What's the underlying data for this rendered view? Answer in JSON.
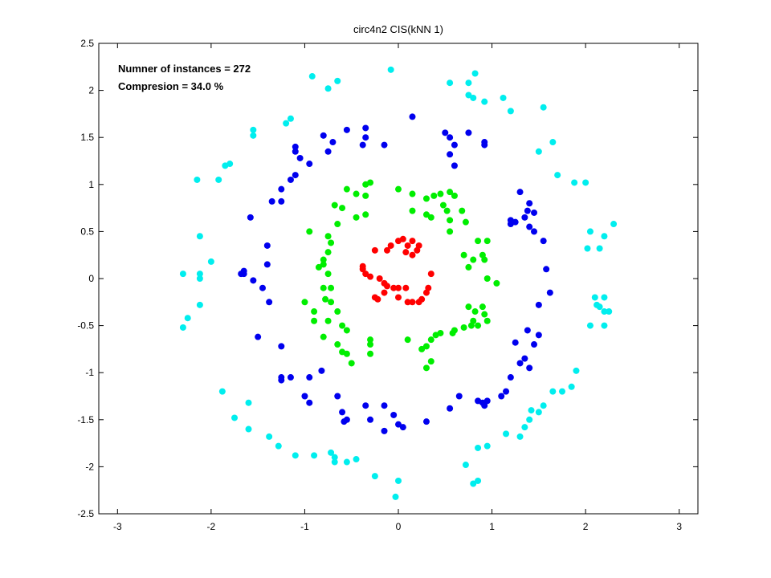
{
  "chart_data": {
    "type": "scatter",
    "title": "circ4n2 CIS(kNN 1)",
    "xlabel": "",
    "ylabel": "",
    "xlim": [
      -3.2,
      3.2
    ],
    "ylim": [
      -2.5,
      2.5
    ],
    "xticks": [
      -3,
      -2,
      -1,
      0,
      1,
      2,
      3
    ],
    "yticks": [
      -2.5,
      -2,
      -1.5,
      -1,
      -0.5,
      0,
      0.5,
      1,
      1.5,
      2,
      2.5
    ],
    "xtick_labels": [
      "-3",
      "-2",
      "-1",
      "0",
      "1",
      "2",
      "3"
    ],
    "ytick_labels": [
      "-2.5",
      "-2",
      "-1.5",
      "-1",
      "-0.5",
      "0",
      "0.5",
      "1",
      "1.5",
      "2",
      "2.5"
    ],
    "grid": false,
    "annotations": [
      "Numner of instances = 272",
      "Compresion = 34.0 %"
    ],
    "series": [
      {
        "color": "#ff0000",
        "points": [
          [
            -0.25,
            0.3
          ],
          [
            -0.12,
            0.3
          ],
          [
            -0.08,
            0.35
          ],
          [
            0.0,
            0.4
          ],
          [
            0.05,
            0.42
          ],
          [
            0.1,
            0.35
          ],
          [
            0.08,
            0.28
          ],
          [
            0.15,
            0.25
          ],
          [
            0.2,
            0.3
          ],
          [
            0.15,
            0.4
          ],
          [
            0.22,
            0.35
          ],
          [
            -0.38,
            0.1
          ],
          [
            -0.35,
            0.05
          ],
          [
            -0.3,
            0.02
          ],
          [
            -0.38,
            0.13
          ],
          [
            -0.2,
            0.0
          ],
          [
            -0.15,
            -0.05
          ],
          [
            -0.12,
            -0.08
          ],
          [
            -0.05,
            -0.1
          ],
          [
            0.0,
            -0.1
          ],
          [
            0.08,
            -0.1
          ],
          [
            -0.25,
            -0.2
          ],
          [
            -0.22,
            -0.22
          ],
          [
            -0.15,
            -0.15
          ],
          [
            0.0,
            -0.2
          ],
          [
            0.1,
            -0.25
          ],
          [
            0.15,
            -0.25
          ],
          [
            0.22,
            -0.25
          ],
          [
            0.25,
            -0.22
          ],
          [
            0.3,
            -0.15
          ],
          [
            0.32,
            -0.1
          ],
          [
            0.35,
            0.05
          ]
        ]
      },
      {
        "color": "#00ee00",
        "points": [
          [
            0.0,
            0.95
          ],
          [
            0.15,
            0.9
          ],
          [
            0.3,
            0.85
          ],
          [
            0.38,
            0.88
          ],
          [
            0.45,
            0.9
          ],
          [
            0.55,
            0.92
          ],
          [
            0.6,
            0.88
          ],
          [
            0.15,
            0.72
          ],
          [
            0.3,
            0.68
          ],
          [
            0.35,
            0.65
          ],
          [
            0.48,
            0.78
          ],
          [
            0.52,
            0.72
          ],
          [
            0.55,
            0.62
          ],
          [
            0.68,
            0.72
          ],
          [
            0.72,
            0.6
          ],
          [
            0.55,
            0.5
          ],
          [
            -0.55,
            0.95
          ],
          [
            -0.45,
            0.9
          ],
          [
            -0.35,
            1.0
          ],
          [
            -0.3,
            1.02
          ],
          [
            -0.35,
            0.88
          ],
          [
            -0.68,
            0.78
          ],
          [
            -0.6,
            0.75
          ],
          [
            -0.45,
            0.65
          ],
          [
            -0.35,
            0.68
          ],
          [
            -0.65,
            0.58
          ],
          [
            -0.95,
            0.5
          ],
          [
            -0.75,
            0.45
          ],
          [
            -0.72,
            0.38
          ],
          [
            -0.75,
            0.28
          ],
          [
            -0.8,
            0.2
          ],
          [
            -0.8,
            0.15
          ],
          [
            -0.85,
            0.12
          ],
          [
            -0.75,
            0.05
          ],
          [
            -0.72,
            -0.1
          ],
          [
            -0.8,
            -0.1
          ],
          [
            -1.0,
            -0.25
          ],
          [
            -0.9,
            -0.35
          ],
          [
            -0.78,
            -0.22
          ],
          [
            -0.72,
            -0.25
          ],
          [
            -0.65,
            -0.35
          ],
          [
            -0.9,
            -0.45
          ],
          [
            -0.75,
            -0.45
          ],
          [
            -0.6,
            -0.5
          ],
          [
            -0.55,
            -0.55
          ],
          [
            -0.8,
            -0.62
          ],
          [
            -0.65,
            -0.7
          ],
          [
            -0.6,
            -0.78
          ],
          [
            -0.55,
            -0.8
          ],
          [
            -0.5,
            -0.9
          ],
          [
            -0.3,
            -0.7
          ],
          [
            -0.3,
            -0.65
          ],
          [
            -0.3,
            -0.8
          ],
          [
            0.85,
            0.4
          ],
          [
            0.95,
            0.4
          ],
          [
            0.7,
            0.25
          ],
          [
            0.9,
            0.25
          ],
          [
            0.92,
            0.2
          ],
          [
            0.8,
            0.2
          ],
          [
            0.75,
            0.12
          ],
          [
            0.95,
            0.0
          ],
          [
            1.05,
            -0.05
          ],
          [
            0.9,
            -0.3
          ],
          [
            0.75,
            -0.3
          ],
          [
            0.82,
            -0.35
          ],
          [
            0.8,
            -0.45
          ],
          [
            0.92,
            -0.38
          ],
          [
            0.95,
            -0.45
          ],
          [
            0.85,
            -0.5
          ],
          [
            0.78,
            -0.5
          ],
          [
            0.7,
            -0.52
          ],
          [
            0.6,
            -0.55
          ],
          [
            0.58,
            -0.58
          ],
          [
            0.45,
            -0.58
          ],
          [
            0.35,
            -0.65
          ],
          [
            0.3,
            -0.72
          ],
          [
            0.25,
            -0.75
          ],
          [
            0.1,
            -0.65
          ],
          [
            0.4,
            -0.6
          ],
          [
            0.3,
            -0.95
          ],
          [
            0.35,
            -0.88
          ]
        ]
      },
      {
        "color": "#0000ee",
        "points": [
          [
            0.15,
            1.72
          ],
          [
            -0.15,
            1.42
          ],
          [
            -0.35,
            1.6
          ],
          [
            -0.35,
            1.5
          ],
          [
            -0.38,
            1.42
          ],
          [
            -0.55,
            1.58
          ],
          [
            -0.7,
            1.45
          ],
          [
            -0.75,
            1.35
          ],
          [
            -0.8,
            1.52
          ],
          [
            -0.95,
            1.22
          ],
          [
            -1.05,
            1.28
          ],
          [
            -1.1,
            1.35
          ],
          [
            -1.1,
            1.4
          ],
          [
            -1.15,
            1.05
          ],
          [
            -1.1,
            1.1
          ],
          [
            -1.25,
            0.82
          ],
          [
            -1.25,
            0.95
          ],
          [
            -1.35,
            0.82
          ],
          [
            -1.58,
            0.65
          ],
          [
            -1.4,
            0.35
          ],
          [
            -1.4,
            0.15
          ],
          [
            -1.65,
            0.05
          ],
          [
            -1.65,
            0.08
          ],
          [
            -1.68,
            0.05
          ],
          [
            -1.55,
            -0.02
          ],
          [
            -1.45,
            -0.1
          ],
          [
            -1.38,
            -0.25
          ],
          [
            -1.5,
            -0.62
          ],
          [
            -1.25,
            -0.72
          ],
          [
            -1.25,
            -1.05
          ],
          [
            -1.25,
            -1.08
          ],
          [
            -1.15,
            -1.05
          ],
          [
            -0.95,
            -1.05
          ],
          [
            -0.82,
            -0.98
          ],
          [
            -1.0,
            -1.25
          ],
          [
            -0.95,
            -1.32
          ],
          [
            -0.65,
            -1.25
          ],
          [
            -0.55,
            -1.5
          ],
          [
            -0.58,
            -1.52
          ],
          [
            -0.6,
            -1.42
          ],
          [
            -0.35,
            -1.35
          ],
          [
            -0.3,
            -1.5
          ],
          [
            -0.15,
            -1.35
          ],
          [
            -0.15,
            -1.62
          ],
          [
            -0.05,
            -1.45
          ],
          [
            0.0,
            -1.55
          ],
          [
            0.05,
            -1.58
          ],
          [
            0.3,
            -1.52
          ],
          [
            0.55,
            -1.38
          ],
          [
            0.65,
            -1.25
          ],
          [
            0.85,
            -1.3
          ],
          [
            0.9,
            -1.32
          ],
          [
            0.95,
            -1.3
          ],
          [
            0.92,
            -1.35
          ],
          [
            1.1,
            -1.25
          ],
          [
            1.15,
            -1.2
          ],
          [
            1.2,
            -1.05
          ],
          [
            1.3,
            -0.9
          ],
          [
            1.4,
            -0.95
          ],
          [
            1.35,
            -0.85
          ],
          [
            1.45,
            -0.7
          ],
          [
            1.5,
            -0.6
          ],
          [
            1.25,
            -0.68
          ],
          [
            1.38,
            -0.55
          ],
          [
            1.5,
            -0.28
          ],
          [
            1.62,
            -0.15
          ],
          [
            1.58,
            0.1
          ],
          [
            1.55,
            0.4
          ],
          [
            1.45,
            0.5
          ],
          [
            1.4,
            0.55
          ],
          [
            1.35,
            0.65
          ],
          [
            1.25,
            0.6
          ],
          [
            1.2,
            0.58
          ],
          [
            1.2,
            0.62
          ],
          [
            1.38,
            0.72
          ],
          [
            1.4,
            0.8
          ],
          [
            1.45,
            0.7
          ],
          [
            1.3,
            0.92
          ],
          [
            0.92,
            1.45
          ],
          [
            0.92,
            1.42
          ],
          [
            0.75,
            1.55
          ],
          [
            0.6,
            1.42
          ],
          [
            0.55,
            1.5
          ],
          [
            0.5,
            1.55
          ],
          [
            0.6,
            1.2
          ],
          [
            0.55,
            1.32
          ]
        ]
      },
      {
        "color": "#00eeee",
        "points": [
          [
            -0.08,
            2.22
          ],
          [
            0.55,
            2.08
          ],
          [
            0.75,
            2.08
          ],
          [
            0.82,
            2.18
          ],
          [
            0.75,
            1.95
          ],
          [
            0.8,
            1.92
          ],
          [
            0.92,
            1.88
          ],
          [
            1.12,
            1.92
          ],
          [
            1.2,
            1.78
          ],
          [
            -0.65,
            2.1
          ],
          [
            -0.92,
            2.15
          ],
          [
            -0.75,
            2.02
          ],
          [
            -1.15,
            1.7
          ],
          [
            -1.2,
            1.65
          ],
          [
            -1.55,
            1.58
          ],
          [
            -1.55,
            1.52
          ],
          [
            -1.8,
            1.22
          ],
          [
            -1.85,
            1.2
          ],
          [
            -2.15,
            1.05
          ],
          [
            -1.92,
            1.05
          ],
          [
            -2.12,
            0.45
          ],
          [
            -2.0,
            0.18
          ],
          [
            -2.12,
            0.05
          ],
          [
            -2.3,
            0.05
          ],
          [
            -2.12,
            0.0
          ],
          [
            -2.12,
            -0.28
          ],
          [
            -2.25,
            -0.42
          ],
          [
            -2.3,
            -0.52
          ],
          [
            -1.88,
            -1.2
          ],
          [
            -1.6,
            -1.32
          ],
          [
            -1.75,
            -1.48
          ],
          [
            -1.6,
            -1.6
          ],
          [
            -1.38,
            -1.68
          ],
          [
            -1.28,
            -1.78
          ],
          [
            -1.1,
            -1.88
          ],
          [
            -0.9,
            -1.88
          ],
          [
            -0.72,
            -1.85
          ],
          [
            -0.68,
            -1.9
          ],
          [
            -0.68,
            -1.95
          ],
          [
            -0.55,
            -1.95
          ],
          [
            -0.45,
            -1.92
          ],
          [
            -0.25,
            -2.1
          ],
          [
            0.0,
            -2.15
          ],
          [
            -0.03,
            -2.32
          ],
          [
            0.72,
            -1.98
          ],
          [
            0.8,
            -2.18
          ],
          [
            0.85,
            -2.15
          ],
          [
            0.95,
            -1.78
          ],
          [
            0.85,
            -1.8
          ],
          [
            1.15,
            -1.65
          ],
          [
            1.3,
            -1.68
          ],
          [
            1.35,
            -1.58
          ],
          [
            1.4,
            -1.5
          ],
          [
            1.42,
            -1.4
          ],
          [
            1.5,
            -1.42
          ],
          [
            1.55,
            -1.35
          ],
          [
            1.65,
            -1.2
          ],
          [
            1.75,
            -1.2
          ],
          [
            1.85,
            -1.15
          ],
          [
            1.9,
            -0.98
          ],
          [
            2.05,
            -0.5
          ],
          [
            2.2,
            -0.5
          ],
          [
            2.12,
            -0.28
          ],
          [
            2.1,
            -0.2
          ],
          [
            2.15,
            -0.3
          ],
          [
            2.2,
            -0.2
          ],
          [
            2.25,
            -0.35
          ],
          [
            2.2,
            -0.35
          ],
          [
            2.02,
            0.32
          ],
          [
            2.15,
            0.32
          ],
          [
            2.2,
            0.45
          ],
          [
            2.05,
            0.5
          ],
          [
            2.3,
            0.58
          ],
          [
            2.0,
            1.02
          ],
          [
            1.88,
            1.02
          ],
          [
            1.7,
            1.1
          ],
          [
            1.65,
            1.45
          ],
          [
            1.5,
            1.35
          ],
          [
            1.55,
            1.82
          ]
        ]
      }
    ]
  }
}
